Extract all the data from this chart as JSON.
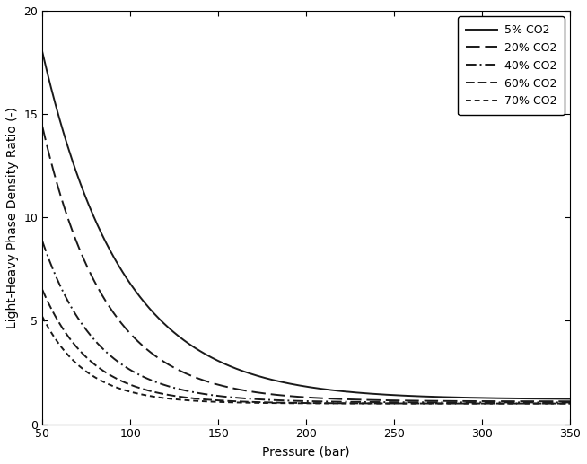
{
  "title": "",
  "xlabel": "Pressure (bar)",
  "ylabel": "Light-Heavy Phase Density Ratio (-)",
  "xlim": [
    50,
    350
  ],
  "ylim": [
    0,
    20
  ],
  "xticks": [
    50,
    100,
    150,
    200,
    250,
    300,
    350
  ],
  "yticks": [
    0,
    5,
    10,
    15,
    20
  ],
  "curve_params": {
    "5% CO2": {
      "a": 16.8,
      "b": 0.022,
      "c": 1.2
    },
    "20% CO2": {
      "a": 13.3,
      "b": 0.028,
      "c": 1.1
    },
    "40% CO2": {
      "a": 7.8,
      "b": 0.032,
      "c": 1.05
    },
    "60% CO2": {
      "a": 5.5,
      "b": 0.036,
      "c": 1.0
    },
    "70% CO2": {
      "a": 4.2,
      "b": 0.04,
      "c": 1.0
    }
  },
  "series": [
    {
      "label": "5% CO2",
      "ls": "solid",
      "color": "#1a1a1a",
      "lw": 1.4
    },
    {
      "label": "20% CO2",
      "ls": "dashed",
      "color": "#1a1a1a",
      "lw": 1.4
    },
    {
      "label": "40% CO2",
      "ls": "dashdot",
      "color": "#1a1a1a",
      "lw": 1.4
    },
    {
      "label": "60% CO2",
      "ls": "dashed",
      "color": "#1a1a1a",
      "lw": 1.4
    },
    {
      "label": "70% CO2",
      "ls": "dashed",
      "color": "#1a1a1a",
      "lw": 1.4
    }
  ],
  "legend_loc": "upper right",
  "legend_fontsize": 9,
  "axis_fontsize": 10,
  "tick_fontsize": 9,
  "figure_facecolor": "#ffffff",
  "axes_facecolor": "#ffffff"
}
